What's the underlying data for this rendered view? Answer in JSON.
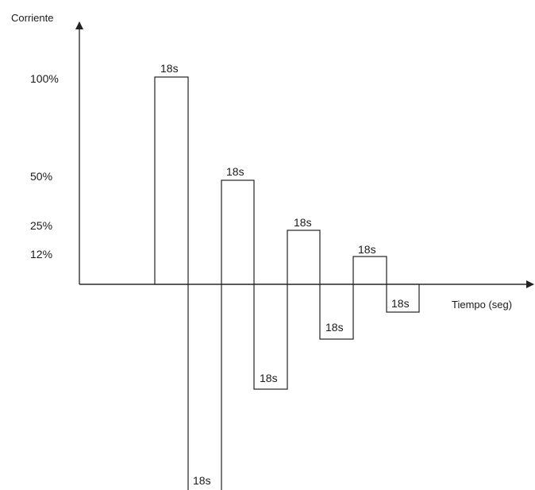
{
  "y_axis_label": "Corriente",
  "x_axis_label": "Tiempo (seg)",
  "y_ticks": [
    "100%",
    "50%",
    "25%",
    "12%"
  ],
  "pulses": [
    {
      "label": "18s",
      "level": "100%",
      "direction": "positive"
    },
    {
      "label": "18s",
      "level": "100%",
      "direction": "negative"
    },
    {
      "label": "18s",
      "level": "50%",
      "direction": "positive"
    },
    {
      "label": "18s",
      "level": "50%",
      "direction": "negative"
    },
    {
      "label": "18s",
      "level": "25%",
      "direction": "positive"
    },
    {
      "label": "18s",
      "level": "25%",
      "direction": "negative"
    },
    {
      "label": "18s",
      "level": "12%",
      "direction": "positive"
    },
    {
      "label": "18s",
      "level": "12%",
      "direction": "negative"
    }
  ]
}
